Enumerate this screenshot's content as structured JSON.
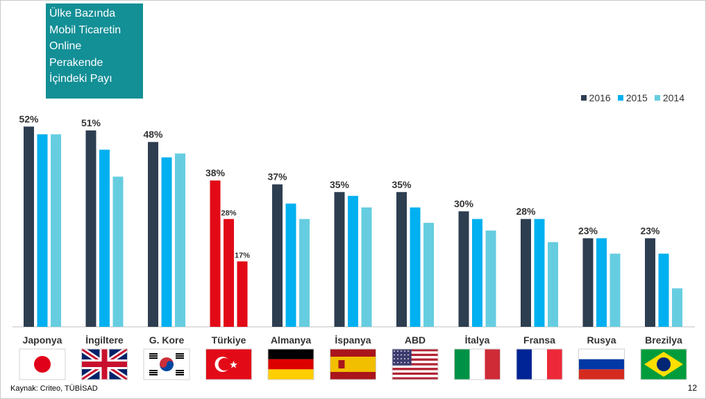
{
  "title": "Ülke Bazında\nMobil Ticaretin\nOnline\nPerakende\nİçindeki Payı",
  "source": "Kaynak: Criteo, TÜBİSAD",
  "page_number": "12",
  "colors": {
    "y2016": "#2d3e50",
    "y2015": "#00b0f0",
    "y2014": "#66cde0",
    "highlight": "#e30a17",
    "title_bg": "#138f96"
  },
  "chart_data": {
    "type": "bar",
    "categories": [
      "Japonya",
      "İngiltere",
      "G. Kore",
      "Türkiye",
      "Almanya",
      "İspanya",
      "ABD",
      "İtalya",
      "Fransa",
      "Rusya",
      "Brezilya"
    ],
    "series": [
      {
        "name": "2016",
        "values": [
          52,
          51,
          48,
          38,
          37,
          35,
          35,
          30,
          28,
          23,
          23
        ]
      },
      {
        "name": "2015",
        "values": [
          50,
          46,
          44,
          28,
          32,
          34,
          31,
          28,
          28,
          23,
          19
        ]
      },
      {
        "name": "2014",
        "values": [
          50,
          39,
          45,
          17,
          28,
          31,
          27,
          25,
          22,
          19,
          10
        ]
      }
    ],
    "data_labels": [
      "52%",
      "51%",
      "48%",
      "38%",
      "37%",
      "35%",
      "35%",
      "30%",
      "28%",
      "23%",
      "23%"
    ],
    "highlight_category": "Türkiye",
    "highlight_labels": {
      "2015": "28%",
      "2014": "17%"
    },
    "legend_position": "top-right",
    "ylim": [
      0,
      60
    ],
    "flags": [
      "japan-flag",
      "uk-flag",
      "south-korea-flag",
      "turkey-flag",
      "germany-flag",
      "spain-flag",
      "usa-flag",
      "italy-flag",
      "france-flag",
      "russia-flag",
      "brazil-flag"
    ]
  }
}
